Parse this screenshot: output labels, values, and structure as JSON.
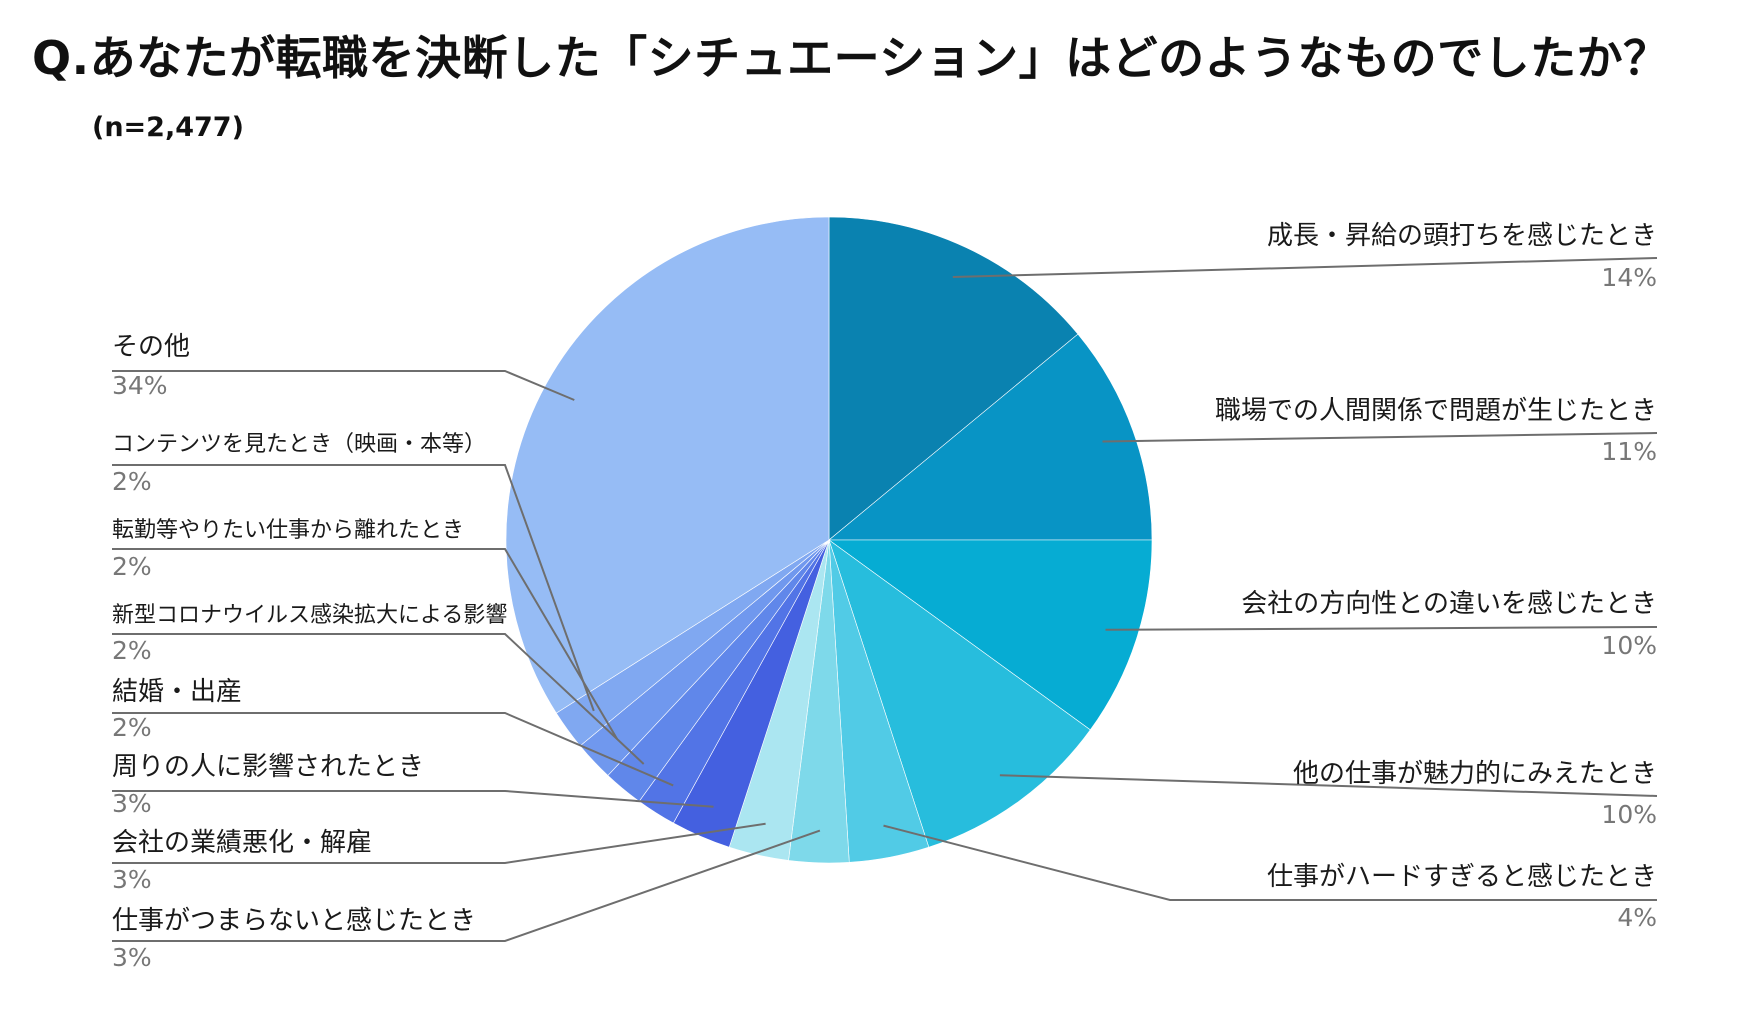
{
  "title": "Q.あなたが転職を決断した「シチュエーション」はどのようなものでしたか？",
  "subtitle": "(n=2,477)",
  "chart_data": {
    "type": "pie",
    "title": "Q.あなたが転職を決断した「シチュエーション」はどのようなものでしたか？",
    "subtitle": "(n=2,477)",
    "slices": [
      {
        "label": "成長・昇給の頭打ちを感じたとき",
        "value": 14,
        "pct_label": "14%",
        "color": "#0a82b0"
      },
      {
        "label": "職場での人間関係で問題が生じたとき",
        "value": 11,
        "pct_label": "11%",
        "color": "#0894c5"
      },
      {
        "label": "会社の方向性との違いを感じたとき",
        "value": 10,
        "pct_label": "10%",
        "color": "#06acd3"
      },
      {
        "label": "他の仕事が魅力的にみえたとき",
        "value": 10,
        "pct_label": "10%",
        "color": "#27bddd"
      },
      {
        "label": "仕事がハードすぎると感じたとき",
        "value": 4,
        "pct_label": "4%",
        "color": "#51cbe6"
      },
      {
        "label": "仕事がつまらないと感じたとき",
        "value": 3,
        "pct_label": "3%",
        "color": "#7ed9ea"
      },
      {
        "label": "会社の業績悪化・解雇",
        "value": 3,
        "pct_label": "3%",
        "color": "#abe6f1"
      },
      {
        "label": "周りの人に影響されたとき",
        "value": 3,
        "pct_label": "3%",
        "color": "#4460e0"
      },
      {
        "label": "結婚・出産",
        "value": 2,
        "pct_label": "2%",
        "color": "#5274e6"
      },
      {
        "label": "新型コロナウイルス感染拡大による影響",
        "value": 2,
        "pct_label": "2%",
        "color": "#6087ea"
      },
      {
        "label": "転勤等やりたい仕事から離れたとき",
        "value": 2,
        "pct_label": "2%",
        "color": "#7098ee"
      },
      {
        "label": "コンテンツを見たとき（映画・本等）",
        "value": 2,
        "pct_label": "2%",
        "color": "#80a8f1"
      },
      {
        "label": "その他",
        "value": 34,
        "pct_label": "34%",
        "color": "#96bcf5"
      }
    ]
  }
}
